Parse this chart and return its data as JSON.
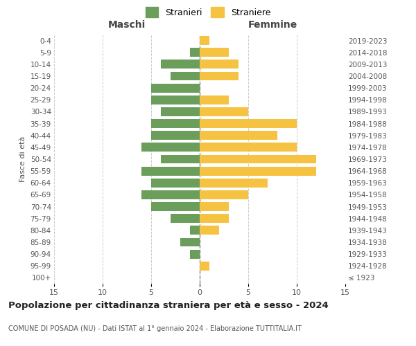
{
  "age_groups": [
    "100+",
    "95-99",
    "90-94",
    "85-89",
    "80-84",
    "75-79",
    "70-74",
    "65-69",
    "60-64",
    "55-59",
    "50-54",
    "45-49",
    "40-44",
    "35-39",
    "30-34",
    "25-29",
    "20-24",
    "15-19",
    "10-14",
    "5-9",
    "0-4"
  ],
  "birth_years": [
    "≤ 1923",
    "1924-1928",
    "1929-1933",
    "1934-1938",
    "1939-1943",
    "1944-1948",
    "1949-1953",
    "1954-1958",
    "1959-1963",
    "1964-1968",
    "1969-1973",
    "1974-1978",
    "1979-1983",
    "1984-1988",
    "1989-1993",
    "1994-1998",
    "1999-2003",
    "2004-2008",
    "2009-2013",
    "2014-2018",
    "2019-2023"
  ],
  "males": [
    0,
    0,
    1,
    2,
    1,
    3,
    5,
    6,
    5,
    6,
    4,
    6,
    5,
    5,
    4,
    5,
    5,
    3,
    4,
    1,
    0
  ],
  "females": [
    0,
    1,
    0,
    0,
    2,
    3,
    3,
    5,
    7,
    12,
    12,
    10,
    8,
    10,
    5,
    3,
    0,
    4,
    4,
    3,
    1
  ],
  "male_color": "#6a9e5a",
  "female_color": "#f5c242",
  "background_color": "#ffffff",
  "grid_color": "#cccccc",
  "title": "Popolazione per cittadinanza straniera per età e sesso - 2024",
  "subtitle": "COMUNE DI POSADA (NU) - Dati ISTAT al 1° gennaio 2024 - Elaborazione TUTTITALIA.IT",
  "xlabel_left": "Maschi",
  "xlabel_right": "Femmine",
  "ylabel_left": "Fasce di età",
  "legend_male": "Stranieri",
  "legend_female": "Straniere",
  "xlim": 15,
  "figsize": [
    6.0,
    5.0
  ],
  "dpi": 100
}
